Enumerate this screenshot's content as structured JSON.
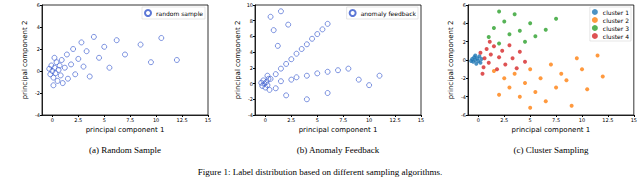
{
  "figure_caption": "Figure 1: Label distribution based on different sampling algorithms.",
  "chart_data": [
    {
      "type": "scatter",
      "title": "(a) Random Sample",
      "x_label": "principal component 1",
      "y_label": "principal component 2",
      "xlim": [
        -1,
        15
      ],
      "ylim": [
        -4,
        6
      ],
      "xticks": [
        0,
        2.5,
        5,
        7.5,
        10,
        12.5,
        15
      ],
      "yticks": [
        -4,
        -2,
        0,
        2,
        4,
        6
      ],
      "grid": false,
      "legend": "upper right",
      "marker": "hollow",
      "series": [
        {
          "name": "random sample",
          "color": "#3355cc",
          "values": [
            [
              -0.3,
              0.2
            ],
            [
              -0.2,
              -0.3
            ],
            [
              -0.1,
              0.5
            ],
            [
              0,
              0
            ],
            [
              0.1,
              -0.6
            ],
            [
              0.2,
              0.3
            ],
            [
              0.3,
              -0.2
            ],
            [
              0.4,
              0.8
            ],
            [
              0.5,
              -0.9
            ],
            [
              0.6,
              0.1
            ],
            [
              0.2,
              1.2
            ],
            [
              0.1,
              -1.3
            ],
            [
              0.7,
              0.5
            ],
            [
              0.8,
              -0.4
            ],
            [
              0.9,
              1.0
            ],
            [
              1.0,
              -1.1
            ],
            [
              1.2,
              0.3
            ],
            [
              1.4,
              1.5
            ],
            [
              1.5,
              -0.7
            ],
            [
              1.8,
              0.6
            ],
            [
              2.0,
              2.0
            ],
            [
              2.2,
              -0.3
            ],
            [
              2.5,
              1.1
            ],
            [
              2.8,
              2.6
            ],
            [
              3.0,
              0.4
            ],
            [
              3.3,
              1.8
            ],
            [
              3.6,
              -0.5
            ],
            [
              4.0,
              3.1
            ],
            [
              4.5,
              1.2
            ],
            [
              5.0,
              2.2
            ],
            [
              5.5,
              0.3
            ],
            [
              6.2,
              2.8
            ],
            [
              7.0,
              1.5
            ],
            [
              8.5,
              2.4
            ],
            [
              9.5,
              0.8
            ],
            [
              10.5,
              3.0
            ],
            [
              12.0,
              1.0
            ]
          ]
        }
      ]
    },
    {
      "type": "scatter",
      "title": "(b) Anomaly Feedback",
      "x_label": "principal component 1",
      "y_label": "principal component 2",
      "xlim": [
        -1,
        15
      ],
      "ylim": [
        -4,
        10
      ],
      "xticks": [
        0,
        2.5,
        5,
        7.5,
        10,
        12.5,
        15
      ],
      "yticks": [
        -4,
        -2,
        0,
        2,
        4,
        6,
        8,
        10
      ],
      "grid": false,
      "legend": "upper right",
      "marker": "hollow",
      "series": [
        {
          "name": "anomaly feedback",
          "color": "#3355cc",
          "values": [
            [
              -0.4,
              0.1
            ],
            [
              -0.3,
              -0.3
            ],
            [
              -0.2,
              0.4
            ],
            [
              -0.1,
              0
            ],
            [
              0,
              -0.5
            ],
            [
              0.1,
              0.2
            ],
            [
              0.2,
              -0.2
            ],
            [
              0.3,
              0.6
            ],
            [
              0.4,
              -0.8
            ],
            [
              0.2,
              1.0
            ],
            [
              0.5,
              0.6
            ],
            [
              1,
              1.2
            ],
            [
              1.5,
              1.9
            ],
            [
              2,
              2.5
            ],
            [
              2.5,
              3.1
            ],
            [
              3,
              3.8
            ],
            [
              3.5,
              4.4
            ],
            [
              4,
              5.0
            ],
            [
              4.5,
              5.7
            ],
            [
              5,
              6.3
            ],
            [
              5.5,
              6.9
            ],
            [
              6,
              7.6
            ],
            [
              0.5,
              8.5
            ],
            [
              1.5,
              9.2
            ],
            [
              0.8,
              6.8
            ],
            [
              2.2,
              7.5
            ],
            [
              1.2,
              4.8
            ],
            [
              3,
              0.8
            ],
            [
              4,
              1.0
            ],
            [
              5,
              1.3
            ],
            [
              6,
              1.5
            ],
            [
              7,
              1.7
            ],
            [
              8,
              1.9
            ],
            [
              9,
              0.5
            ],
            [
              10,
              -0.2
            ],
            [
              11,
              1.0
            ],
            [
              2,
              -1.5
            ],
            [
              4,
              -2
            ],
            [
              6,
              -1.2
            ],
            [
              1,
              -0.6
            ],
            [
              1.5,
              0.3
            ],
            [
              2.5,
              0.5
            ]
          ]
        }
      ]
    },
    {
      "type": "scatter",
      "title": "(c) Cluster Sampling",
      "x_label": "principal component 1",
      "y_label": "principal component 2",
      "xlim": [
        -1,
        15
      ],
      "ylim": [
        -6,
        6
      ],
      "xticks": [
        0,
        2.5,
        5,
        7.5,
        10,
        12.5,
        15
      ],
      "yticks": [
        -6,
        -4,
        -2,
        0,
        2,
        4,
        6
      ],
      "grid": false,
      "legend": "upper right",
      "marker": "circle",
      "series": [
        {
          "name": "cluster 1",
          "color": "#1f77b4",
          "values": [
            [
              -0.6,
              0.1
            ],
            [
              -0.5,
              -0.2
            ],
            [
              -0.4,
              0.3
            ],
            [
              -0.3,
              0
            ],
            [
              -0.2,
              -0.4
            ],
            [
              -0.1,
              0.2
            ],
            [
              0,
              -0.1
            ],
            [
              0.1,
              0.4
            ],
            [
              0.2,
              -0.3
            ],
            [
              -0.7,
              -0.1
            ],
            [
              0.3,
              0.1
            ],
            [
              -0.3,
              0.5
            ]
          ]
        },
        {
          "name": "cluster 2",
          "color": "#ff7f0e",
          "values": [
            [
              1.5,
              -1.2
            ],
            [
              2.5,
              -2
            ],
            [
              3,
              -3
            ],
            [
              3.5,
              -1.5
            ],
            [
              4,
              -4
            ],
            [
              4.5,
              -2.5
            ],
            [
              5,
              -1
            ],
            [
              5.5,
              -3.5
            ],
            [
              6,
              -2
            ],
            [
              6.5,
              -4.5
            ],
            [
              7,
              -0.5
            ],
            [
              7.5,
              -3
            ],
            [
              8,
              -1.5
            ],
            [
              8.5,
              -2.2
            ],
            [
              9,
              -5
            ],
            [
              9.5,
              0.2
            ],
            [
              10,
              -1
            ],
            [
              10.5,
              -3.2
            ],
            [
              11.5,
              0.5
            ],
            [
              12,
              -1.8
            ],
            [
              2,
              -3.8
            ],
            [
              5,
              -5.2
            ]
          ]
        },
        {
          "name": "cluster 3",
          "color": "#2ca02c",
          "values": [
            [
              1,
              2.5
            ],
            [
              1.5,
              3.5
            ],
            [
              2,
              1.8
            ],
            [
              2.5,
              4.2
            ],
            [
              3,
              2.8
            ],
            [
              3.5,
              5
            ],
            [
              4,
              3.2
            ],
            [
              4.5,
              2
            ],
            [
              5,
              4
            ],
            [
              5.5,
              2.6
            ],
            [
              6.5,
              3.3
            ],
            [
              7.5,
              4.5
            ],
            [
              2,
              5.3
            ]
          ]
        },
        {
          "name": "cluster 4",
          "color": "#d62728",
          "values": [
            [
              0.2,
              0.8
            ],
            [
              0.5,
              -0.8
            ],
            [
              0.8,
              1.2
            ],
            [
              1,
              -0.3
            ],
            [
              1.2,
              0.6
            ],
            [
              1.5,
              1.5
            ],
            [
              1.8,
              -1
            ],
            [
              2,
              0.3
            ],
            [
              2.3,
              1
            ],
            [
              2.6,
              -0.5
            ],
            [
              3,
              1.6
            ],
            [
              3.3,
              0.2
            ],
            [
              3.7,
              -0.9
            ],
            [
              4,
              0.9
            ],
            [
              4.5,
              -0.2
            ],
            [
              0.6,
              0.2
            ],
            [
              1.1,
              2
            ],
            [
              0.4,
              -1.5
            ]
          ]
        }
      ]
    }
  ]
}
